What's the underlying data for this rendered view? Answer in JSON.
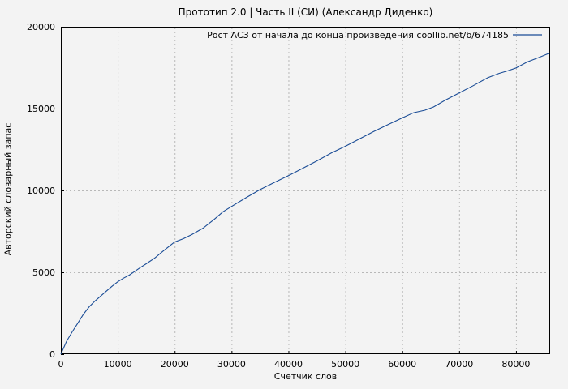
{
  "colors": {
    "background": "#f3f3f3",
    "line": "#1a4c96",
    "grid": "#b8b8b8",
    "axis": "#000000"
  },
  "chart_data": {
    "type": "line",
    "title": "Прототип 2.0 | Часть II (СИ) (Александр Диденко)",
    "xlabel": "Счетчик слов",
    "ylabel": "Авторский словарный запас",
    "xlim": [
      0,
      86000
    ],
    "ylim": [
      0,
      20000
    ],
    "xticks": [
      0,
      10000,
      20000,
      30000,
      40000,
      50000,
      60000,
      70000,
      80000
    ],
    "yticks": [
      0,
      5000,
      10000,
      15000,
      20000
    ],
    "grid": true,
    "legend_position": "top-right-inside",
    "series": [
      {
        "name": "Рост АСЗ от начала до конца произведения coollib.net/b/674185",
        "color": "#1a4c96",
        "points": [
          [
            0,
            0
          ],
          [
            1000,
            780
          ],
          [
            2000,
            1360
          ],
          [
            3000,
            1900
          ],
          [
            4000,
            2450
          ],
          [
            5000,
            2900
          ],
          [
            6000,
            3250
          ],
          [
            7000,
            3550
          ],
          [
            8000,
            3850
          ],
          [
            9000,
            4150
          ],
          [
            10000,
            4420
          ],
          [
            11000,
            4640
          ],
          [
            12000,
            4820
          ],
          [
            13000,
            5060
          ],
          [
            14000,
            5300
          ],
          [
            15000,
            5520
          ],
          [
            16500,
            5870
          ],
          [
            18000,
            6300
          ],
          [
            20000,
            6850
          ],
          [
            21500,
            7050
          ],
          [
            23000,
            7300
          ],
          [
            25000,
            7700
          ],
          [
            27000,
            8250
          ],
          [
            28500,
            8700
          ],
          [
            30000,
            9020
          ],
          [
            32500,
            9550
          ],
          [
            35000,
            10050
          ],
          [
            37500,
            10480
          ],
          [
            40000,
            10900
          ],
          [
            42500,
            11350
          ],
          [
            45000,
            11800
          ],
          [
            47500,
            12280
          ],
          [
            50000,
            12700
          ],
          [
            52500,
            13150
          ],
          [
            55000,
            13600
          ],
          [
            57500,
            14020
          ],
          [
            60000,
            14430
          ],
          [
            62000,
            14750
          ],
          [
            64000,
            14900
          ],
          [
            65500,
            15100
          ],
          [
            67500,
            15500
          ],
          [
            70000,
            15950
          ],
          [
            72500,
            16400
          ],
          [
            75000,
            16880
          ],
          [
            77000,
            17150
          ],
          [
            78500,
            17300
          ],
          [
            80000,
            17480
          ],
          [
            82000,
            17850
          ],
          [
            84000,
            18120
          ],
          [
            86000,
            18400
          ]
        ]
      }
    ]
  }
}
